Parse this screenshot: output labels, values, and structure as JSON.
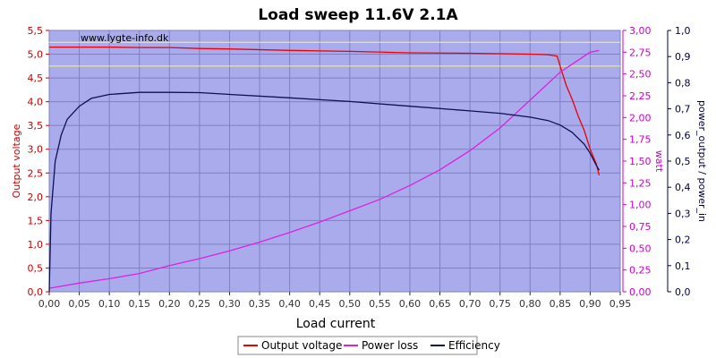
{
  "chart_data": {
    "type": "line",
    "title": "Load sweep 11.6V 2.1A",
    "watermark": "www.lygte-info.dk",
    "xlabel": "Load current",
    "xlim": [
      0,
      0.95
    ],
    "xticks": [
      "0,00",
      "0,05",
      "0,10",
      "0,15",
      "0,20",
      "0,25",
      "0,30",
      "0,35",
      "0,40",
      "0,45",
      "0,50",
      "0,55",
      "0,60",
      "0,65",
      "0,70",
      "0,75",
      "0,80",
      "0,85",
      "0,90",
      "0,95"
    ],
    "y_left": {
      "label": "Output voltage",
      "lim": [
        0,
        5.5
      ],
      "ticks": [
        "0,0",
        "0,5",
        "1,0",
        "1,5",
        "2,0",
        "2,5",
        "3,0",
        "3,5",
        "4,0",
        "4,5",
        "5,0",
        "5,5"
      ],
      "color": "#cc0000"
    },
    "y_right1": {
      "label": "watt",
      "lim": [
        0,
        3.0
      ],
      "ticks": [
        "0,00",
        "0,25",
        "0,50",
        "0,75",
        "1,00",
        "1,25",
        "1,50",
        "1,75",
        "2,00",
        "2,25",
        "2,50",
        "2,75",
        "3,00"
      ],
      "color": "#cc00cc"
    },
    "y_right2": {
      "label": "power_output / power_in",
      "lim": [
        0,
        1.0
      ],
      "ticks": [
        "0,0",
        "0,1",
        "0,2",
        "0,3",
        "0,4",
        "0,5",
        "0,6",
        "0,7",
        "0,8",
        "0,9",
        "1,0"
      ],
      "color": "#000040"
    },
    "reference_lines_voltage": [
      5.25,
      4.75
    ],
    "grid": true,
    "legend_position": "bottom",
    "series": [
      {
        "name": "Output voltage",
        "axis": "left",
        "color": "#ee0000",
        "x": [
          0.0,
          0.05,
          0.1,
          0.15,
          0.2,
          0.25,
          0.3,
          0.4,
          0.5,
          0.6,
          0.7,
          0.8,
          0.83,
          0.845,
          0.85,
          0.86,
          0.87,
          0.88,
          0.89,
          0.9,
          0.91,
          0.915
        ],
        "y": [
          5.15,
          5.15,
          5.15,
          5.14,
          5.14,
          5.12,
          5.11,
          5.08,
          5.06,
          5.03,
          5.02,
          5.0,
          4.99,
          4.96,
          4.75,
          4.35,
          4.05,
          3.7,
          3.4,
          3.0,
          2.7,
          2.45
        ]
      },
      {
        "name": "Power loss",
        "axis": "right1",
        "color": "#dd22dd",
        "x": [
          0.0,
          0.05,
          0.1,
          0.15,
          0.2,
          0.25,
          0.3,
          0.35,
          0.4,
          0.45,
          0.5,
          0.55,
          0.6,
          0.65,
          0.7,
          0.75,
          0.8,
          0.85,
          0.9,
          0.915
        ],
        "y": [
          0.04,
          0.1,
          0.15,
          0.21,
          0.3,
          0.38,
          0.47,
          0.57,
          0.68,
          0.8,
          0.93,
          1.06,
          1.22,
          1.4,
          1.62,
          1.88,
          2.2,
          2.52,
          2.75,
          2.77
        ]
      },
      {
        "name": "Efficiency",
        "axis": "right2",
        "color": "#101050",
        "x": [
          0.0,
          0.003,
          0.01,
          0.02,
          0.03,
          0.05,
          0.07,
          0.1,
          0.15,
          0.2,
          0.25,
          0.3,
          0.4,
          0.5,
          0.6,
          0.7,
          0.75,
          0.8,
          0.83,
          0.85,
          0.87,
          0.89,
          0.9,
          0.91,
          0.915
        ],
        "y": [
          0.0,
          0.3,
          0.5,
          0.6,
          0.66,
          0.71,
          0.74,
          0.755,
          0.763,
          0.763,
          0.762,
          0.755,
          0.742,
          0.728,
          0.71,
          0.692,
          0.683,
          0.668,
          0.655,
          0.638,
          0.61,
          0.565,
          0.53,
          0.485,
          0.465
        ]
      }
    ]
  }
}
